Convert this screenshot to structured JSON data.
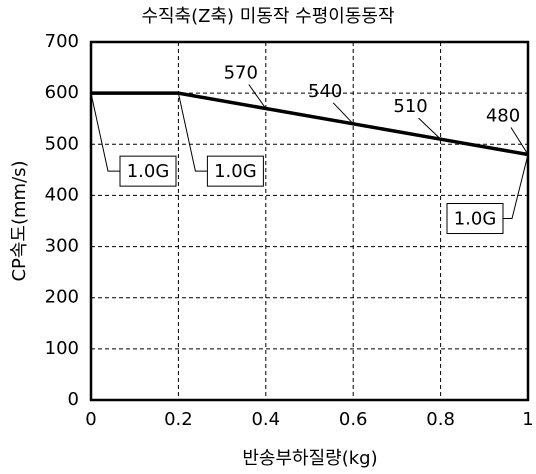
{
  "chart_data": {
    "type": "line",
    "title": "수직축(Z축) 미동작 수평이동동작",
    "x_label": "반송부하질량(kg)",
    "y_label": "CP속도(mm/s)",
    "x": [
      0,
      0.2,
      0.4,
      0.6,
      0.8,
      1
    ],
    "series": [
      {
        "color": "#000000",
        "values": [
          600,
          600,
          570,
          540,
          510,
          480
        ]
      }
    ],
    "xlim": [
      0,
      1
    ],
    "xticks": [
      0,
      0.2,
      0.4,
      0.6,
      0.8,
      1
    ],
    "ylim": [
      0,
      700
    ],
    "yticks": [
      0,
      100,
      200,
      300,
      400,
      500,
      600,
      700
    ],
    "grid": true,
    "annotations": [
      {
        "text": "1.0G",
        "x": 0,
        "y": 600
      },
      {
        "text": "1.0G",
        "x": 0.2,
        "y": 600
      },
      {
        "text": "1.0G",
        "x": 1,
        "y": 480
      }
    ]
  }
}
